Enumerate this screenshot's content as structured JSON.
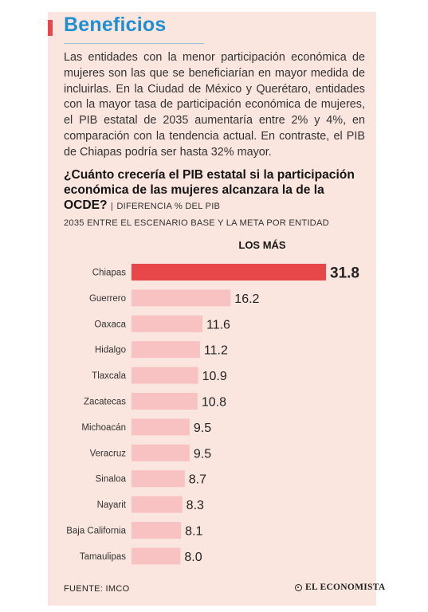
{
  "section_title": "Beneficios",
  "intro_text": "Las entidades con la menor participación económica de mujeres son las que se beneficiarían en mayor medida de incluirlas. En la Ciudad de México y Querétaro, entidades con la mayor tasa de participación económica de mujeres, el PIB estatal de 2035 aumentaría entre 2% y 4%, en comparación con la tendencia actual. En contraste, el PIB de Chiapas podría ser hasta 32% mayor.",
  "chart_question": "¿Cuánto crecería el PIB estatal si la participación económica de las mujeres alcanzara la de la OCDE?",
  "chart_separator": "|",
  "chart_subtitle_part1": "DIFERENCIA % DEL PIB",
  "chart_subtitle_part2": "2035 ENTRE EL ESCENARIO BASE Y LA META POR ENTIDAD",
  "footer": {
    "source": "FUENTE: IMCO",
    "brand": "EL ECONOMISTA",
    "brand_icon": "el-economista-logo-icon"
  },
  "colors": {
    "highlight_bar": "#e8474a",
    "bar": "#f8c2c2",
    "heading": "#1f8fd1",
    "background": "#fbe6df"
  },
  "chart_data": {
    "type": "bar",
    "orientation": "horizontal",
    "title": "LOS MÁS",
    "categories": [
      "Chiapas",
      "Guerrero",
      "Oaxaca",
      "Hidalgo",
      "Tlaxcala",
      "Zacatecas",
      "Michoacán",
      "Veracruz",
      "Sinaloa",
      "Nayarit",
      "Baja California",
      "Tamaulipas"
    ],
    "values": [
      31.8,
      16.2,
      11.6,
      11.2,
      10.9,
      10.8,
      9.5,
      9.5,
      8.7,
      8.3,
      8.1,
      8.0
    ],
    "value_labels": [
      "31.8",
      "16.2",
      "11.6",
      "11.2",
      "10.9",
      "10.8",
      "9.5",
      "9.5",
      "8.7",
      "8.3",
      "8.1",
      "8.0"
    ],
    "highlight_index": 0,
    "xlim": [
      0,
      31.8
    ],
    "grid": false,
    "legend": "none"
  }
}
